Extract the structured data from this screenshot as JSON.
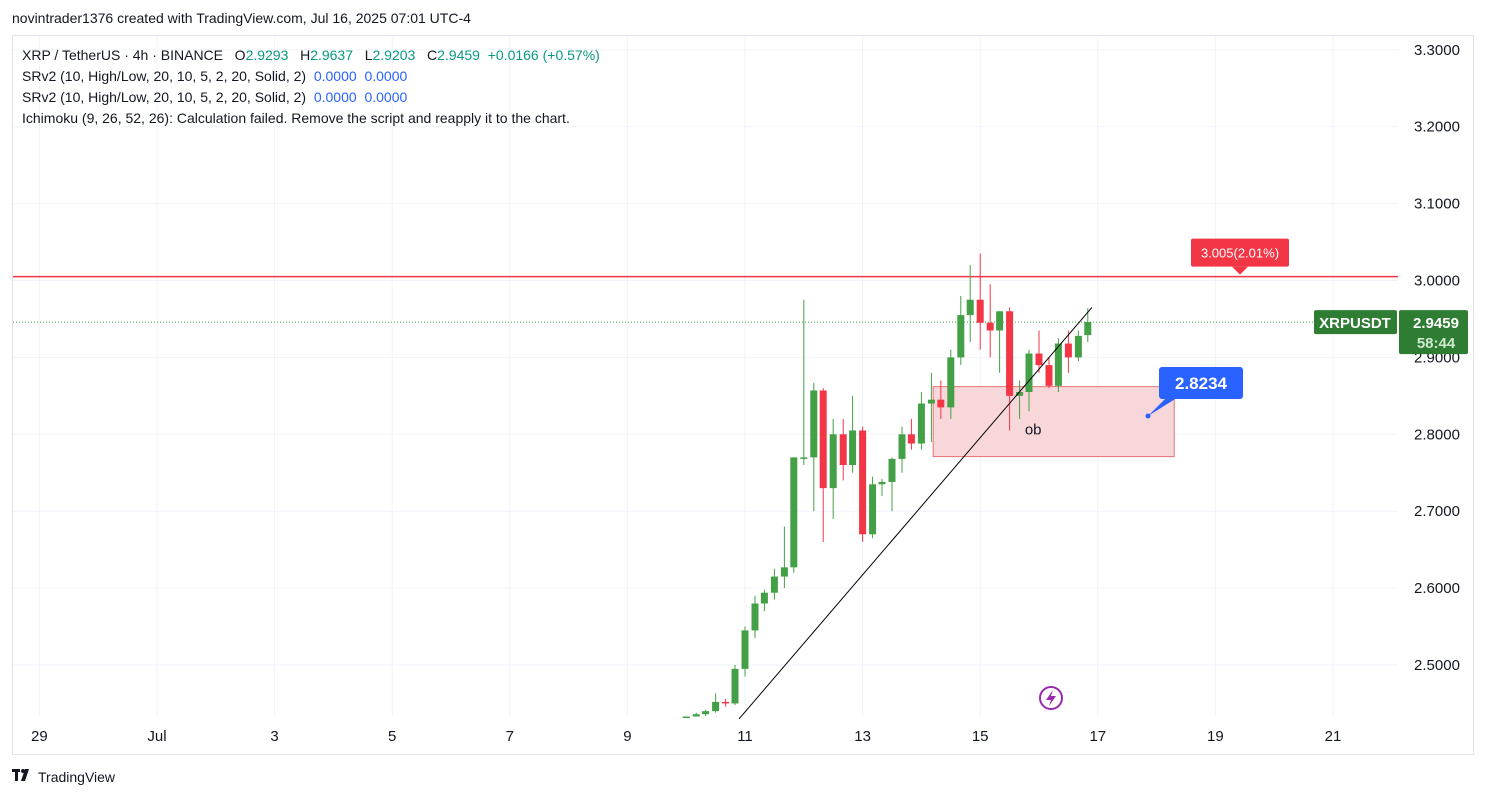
{
  "header": {
    "caption": "novintrader1376 created with TradingView.com, Jul 16, 2025 07:01 UTC-4"
  },
  "legend": {
    "symbol_line": "XRP / TetherUS · 4h · BINANCE",
    "ohlc": [
      {
        "label": "O",
        "value": "2.9293"
      },
      {
        "label": "H",
        "value": "2.9637"
      },
      {
        "label": "L",
        "value": "2.9203"
      },
      {
        "label": "C",
        "value": "2.9459"
      }
    ],
    "change": "+0.0166 (+0.57%)",
    "indicators": [
      {
        "name": "SRv2 (10, High/Low, 20, 10, 5, 2, 20, Solid, 2)",
        "v1": "0.0000",
        "v2": "0.0000"
      },
      {
        "name": "SRv2 (10, High/Low, 20, 10, 5, 2, 20, Solid, 2)",
        "v1": "0.0000",
        "v2": "0.0000"
      }
    ],
    "ichimoku": "Ichimoku (9, 26, 52, 26): Calculation failed. Remove the script and reapply it to the chart."
  },
  "footer": {
    "brand": "TradingView"
  },
  "colors": {
    "up": "#43a047",
    "down": "#f23645",
    "resistance": "#f23645",
    "ob_fill": "#f8d7da",
    "ob_stroke": "#e57373",
    "price_label": "#2e7d32",
    "target_label": "#2962ff",
    "grid": "#f0f3fa",
    "text": "#131722",
    "icon_purple": "#9c27b0"
  },
  "chart_data": {
    "type": "candlestick",
    "symbol": "XRPUSDT",
    "interval": "4h",
    "exchange": "BINANCE",
    "x_tick_labels": [
      "29",
      "Jul",
      "3",
      "5",
      "7",
      "9",
      "11",
      "13",
      "15",
      "17",
      "19",
      "21"
    ],
    "x_tick_days": [
      -2,
      0,
      2,
      4,
      6,
      8,
      10,
      12,
      14,
      16,
      18,
      20
    ],
    "y_ticks": [
      "2.5000",
      "2.6000",
      "2.7000",
      "2.8000",
      "2.9000",
      "3.0000",
      "3.1000",
      "3.2000",
      "3.3000"
    ],
    "ylim": [
      2.43,
      3.34
    ],
    "candles": [
      {
        "day": 9.0,
        "o": 2.432,
        "h": 2.434,
        "l": 2.428,
        "c": 2.433
      },
      {
        "day": 9.17,
        "o": 2.433,
        "h": 2.438,
        "l": 2.43,
        "c": 2.436
      },
      {
        "day": 9.33,
        "o": 2.436,
        "h": 2.442,
        "l": 2.433,
        "c": 2.44
      },
      {
        "day": 9.5,
        "o": 2.44,
        "h": 2.463,
        "l": 2.438,
        "c": 2.452
      },
      {
        "day": 9.67,
        "o": 2.452,
        "h": 2.456,
        "l": 2.446,
        "c": 2.45
      },
      {
        "day": 9.83,
        "o": 2.45,
        "h": 2.5,
        "l": 2.448,
        "c": 2.495
      },
      {
        "day": 10.0,
        "o": 2.495,
        "h": 2.55,
        "l": 2.485,
        "c": 2.545
      },
      {
        "day": 10.17,
        "o": 2.545,
        "h": 2.59,
        "l": 2.535,
        "c": 2.58
      },
      {
        "day": 10.33,
        "o": 2.58,
        "h": 2.598,
        "l": 2.57,
        "c": 2.594
      },
      {
        "day": 10.5,
        "o": 2.594,
        "h": 2.625,
        "l": 2.585,
        "c": 2.615
      },
      {
        "day": 10.67,
        "o": 2.615,
        "h": 2.68,
        "l": 2.6,
        "c": 2.627
      },
      {
        "day": 10.83,
        "o": 2.627,
        "h": 2.77,
        "l": 2.62,
        "c": 2.77
      },
      {
        "day": 11.0,
        "o": 2.77,
        "h": 2.975,
        "l": 2.76,
        "c": 2.77
      },
      {
        "day": 11.17,
        "o": 2.77,
        "h": 2.867,
        "l": 2.7,
        "c": 2.857
      },
      {
        "day": 11.33,
        "o": 2.857,
        "h": 2.86,
        "l": 2.66,
        "c": 2.73
      },
      {
        "day": 11.5,
        "o": 2.73,
        "h": 2.82,
        "l": 2.69,
        "c": 2.8
      },
      {
        "day": 11.67,
        "o": 2.8,
        "h": 2.82,
        "l": 2.74,
        "c": 2.76
      },
      {
        "day": 11.83,
        "o": 2.76,
        "h": 2.85,
        "l": 2.75,
        "c": 2.805
      },
      {
        "day": 12.0,
        "o": 2.805,
        "h": 2.81,
        "l": 2.66,
        "c": 2.67
      },
      {
        "day": 12.17,
        "o": 2.67,
        "h": 2.745,
        "l": 2.665,
        "c": 2.735
      },
      {
        "day": 12.33,
        "o": 2.735,
        "h": 2.742,
        "l": 2.72,
        "c": 2.738
      },
      {
        "day": 12.5,
        "o": 2.738,
        "h": 2.77,
        "l": 2.7,
        "c": 2.768
      },
      {
        "day": 12.67,
        "o": 2.768,
        "h": 2.81,
        "l": 2.75,
        "c": 2.8
      },
      {
        "day": 12.83,
        "o": 2.8,
        "h": 2.82,
        "l": 2.78,
        "c": 2.788
      },
      {
        "day": 13.0,
        "o": 2.788,
        "h": 2.855,
        "l": 2.78,
        "c": 2.84
      },
      {
        "day": 13.17,
        "o": 2.84,
        "h": 2.88,
        "l": 2.79,
        "c": 2.845
      },
      {
        "day": 13.33,
        "o": 2.845,
        "h": 2.87,
        "l": 2.82,
        "c": 2.835
      },
      {
        "day": 13.5,
        "o": 2.835,
        "h": 2.91,
        "l": 2.82,
        "c": 2.9
      },
      {
        "day": 13.67,
        "o": 2.9,
        "h": 2.98,
        "l": 2.89,
        "c": 2.955
      },
      {
        "day": 13.83,
        "o": 2.955,
        "h": 3.02,
        "l": 2.92,
        "c": 2.975
      },
      {
        "day": 14.0,
        "o": 2.975,
        "h": 3.035,
        "l": 2.91,
        "c": 2.945
      },
      {
        "day": 14.17,
        "o": 2.945,
        "h": 2.995,
        "l": 2.9,
        "c": 2.935
      },
      {
        "day": 14.33,
        "o": 2.935,
        "h": 2.96,
        "l": 2.88,
        "c": 2.96
      },
      {
        "day": 14.5,
        "o": 2.96,
        "h": 2.965,
        "l": 2.805,
        "c": 2.85
      },
      {
        "day": 14.67,
        "o": 2.85,
        "h": 2.87,
        "l": 2.82,
        "c": 2.855
      },
      {
        "day": 14.83,
        "o": 2.855,
        "h": 2.91,
        "l": 2.83,
        "c": 2.905
      },
      {
        "day": 15.0,
        "o": 2.905,
        "h": 2.935,
        "l": 2.88,
        "c": 2.89
      },
      {
        "day": 15.17,
        "o": 2.89,
        "h": 2.9,
        "l": 2.86,
        "c": 2.863
      },
      {
        "day": 15.33,
        "o": 2.863,
        "h": 2.925,
        "l": 2.855,
        "c": 2.918
      },
      {
        "day": 15.5,
        "o": 2.918,
        "h": 2.935,
        "l": 2.88,
        "c": 2.9
      },
      {
        "day": 15.67,
        "o": 2.9,
        "h": 2.935,
        "l": 2.895,
        "c": 2.928
      },
      {
        "day": 15.83,
        "o": 2.929,
        "h": 2.964,
        "l": 2.92,
        "c": 2.946
      }
    ],
    "resistance": {
      "price": 3.005,
      "label": "3.005(2.01%)"
    },
    "current_price": {
      "price": 2.9459,
      "symbol_label": "XRPUSDT",
      "price_label": "2.9459",
      "countdown": "58:44"
    },
    "order_block": {
      "label": "ob",
      "from_day": 13.2,
      "to_day": 17.3,
      "top": 2.862,
      "bottom": 2.771
    },
    "trendline": {
      "from_day": 9.9,
      "from_price": 2.43,
      "to_day": 15.9,
      "to_price": 2.965
    },
    "target": {
      "price_label": "2.8234",
      "anchor_day": 17.8,
      "anchor_price": 2.824
    }
  }
}
